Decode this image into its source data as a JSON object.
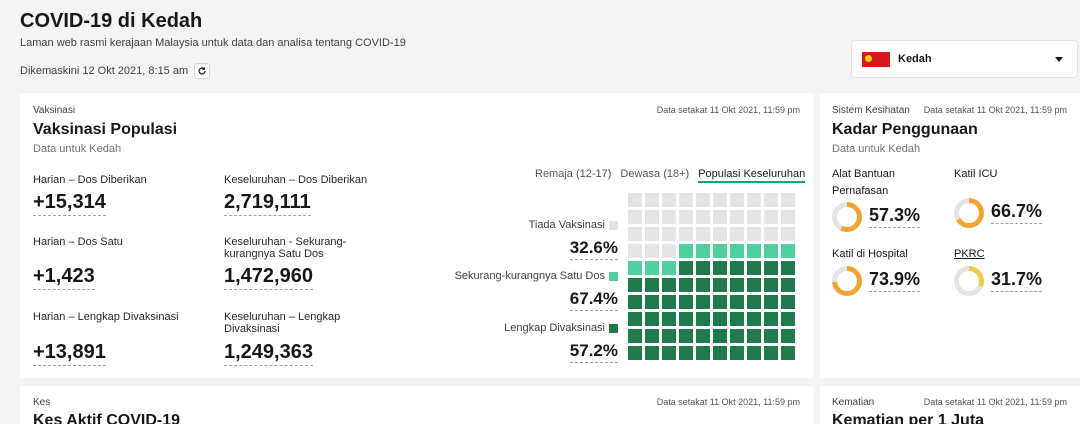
{
  "header": {
    "title": "COVID-19 di Kedah",
    "description": "Laman web rasmi kerajaan Malaysia untuk data dan analisa tentang COVID-19",
    "updated": "Dikemaskini 12 Okt 2021, 8:15 am",
    "refresh_icon": "refresh-icon"
  },
  "state_select": {
    "value": "Kedah",
    "flag_icon": "kedah-flag-icon",
    "caret_icon": "chevron-down-icon"
  },
  "vaccination": {
    "eyebrow": "Vaksinasi",
    "title": "Vaksinasi Populasi",
    "subtitle": "Data untuk Kedah",
    "stamp": "Data setakat 11 Okt 2021, 11:59 pm",
    "stats": [
      {
        "label": "Harian – Dos Diberikan",
        "value": "+15,314"
      },
      {
        "label": "Keseluruhan – Dos Diberikan",
        "value": "2,719,111"
      },
      {
        "label": "Harian – Dos Satu",
        "value": "+1,423"
      },
      {
        "label": "Keseluruhan - Sekurang-kurangnya Satu Dos",
        "value": "1,472,960"
      },
      {
        "label": "Harian – Lengkap Divaksinasi",
        "value": "+13,891"
      },
      {
        "label": "Keseluruhan – Lengkap Divaksinasi",
        "value": "1,249,363"
      }
    ],
    "tabs": [
      "Remaja (12-17)",
      "Dewasa (18+)",
      "Populasi Keseluruhan"
    ],
    "active_tab": 2,
    "legend": [
      {
        "label": "Tiada Vaksinasi",
        "value": "32.6%",
        "color": "#e4e4e7"
      },
      {
        "label": "Sekurang-kurangnya Satu Dos",
        "value": "67.4%",
        "color": "#4fd09e"
      },
      {
        "label": "Lengkap Divaksinasi",
        "value": "57.2%",
        "color": "#1f7a4d"
      }
    ],
    "waffle_full": 57,
    "waffle_partial": 10,
    "waffle_total": 100
  },
  "health": {
    "eyebrow": "Sistem Kesihatan",
    "stamp": "Data setakat 11 Okt 2021, 11:59 pm",
    "title": "Kadar Penggunaan",
    "subtitle": "Data untuk Kedah",
    "metrics": [
      {
        "label": "Alat Bantuan Pernafasan",
        "value": "57.3%",
        "pct": 57.3,
        "color": "#f0a531"
      },
      {
        "label": "Katil ICU",
        "value": "66.7%",
        "pct": 66.7,
        "color": "#f0a531"
      },
      {
        "label": "Katil di Hospital",
        "value": "73.9%",
        "pct": 73.9,
        "color": "#f0a531"
      },
      {
        "label": "PKRC",
        "value": "31.7%",
        "pct": 31.7,
        "color": "#f0c94f"
      }
    ]
  },
  "cases": {
    "eyebrow": "Kes",
    "title": "Kes Aktif COVID-19",
    "stamp": "Data setakat 11 Okt 2021, 11:59 pm"
  },
  "deaths": {
    "eyebrow": "Kematian",
    "title": "Kematian per 1 Juta",
    "stamp": "Data setakat 11 Okt 2021, 11:59 pm"
  }
}
